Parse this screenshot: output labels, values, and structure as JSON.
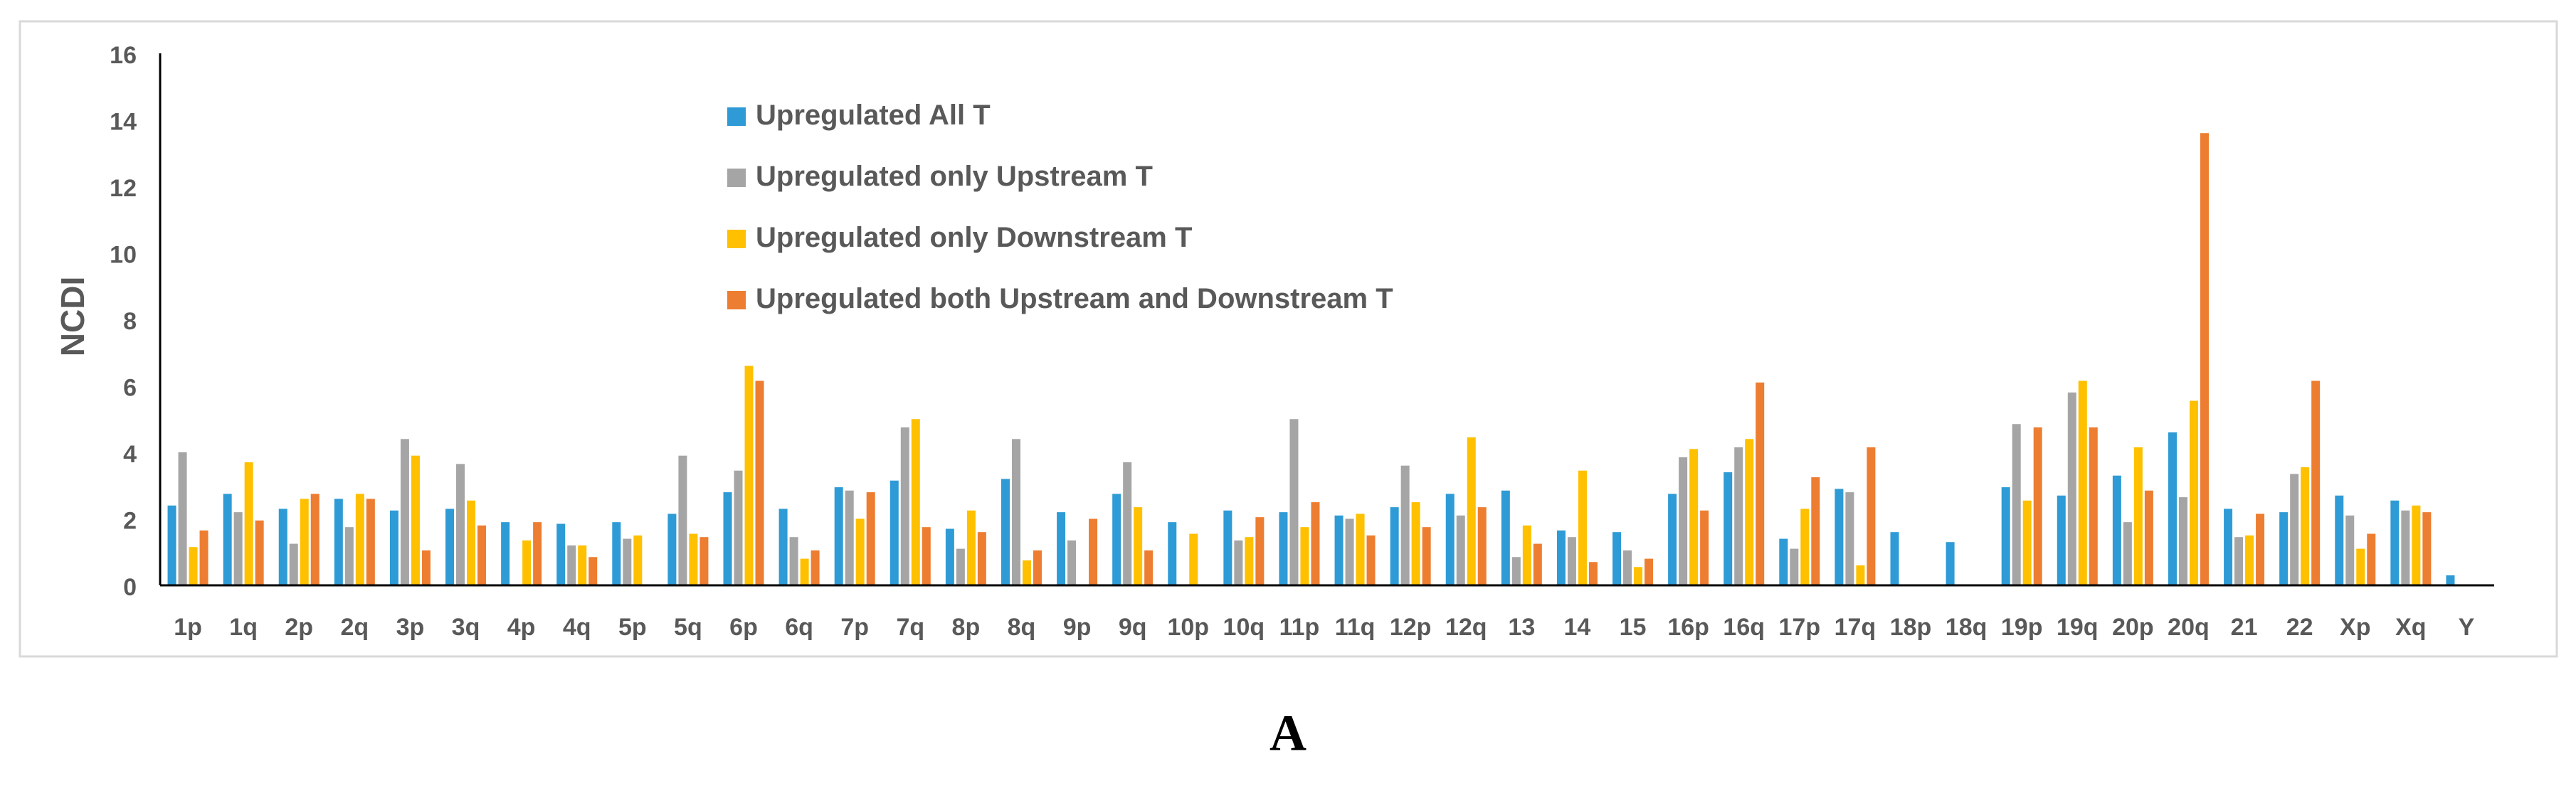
{
  "chart_data": {
    "type": "bar",
    "ylabel": "NCDI",
    "xlabel": "",
    "ylim": [
      0,
      16
    ],
    "yticks": [
      0,
      2,
      4,
      6,
      8,
      10,
      12,
      14,
      16
    ],
    "legend_position": "top-left-center",
    "grid": false,
    "categories": [
      "1p",
      "1q",
      "2p",
      "2q",
      "3p",
      "3q",
      "4p",
      "4q",
      "5p",
      "5q",
      "6p",
      "6q",
      "7p",
      "7q",
      "8p",
      "8q",
      "9p",
      "9q",
      "10p",
      "10q",
      "11p",
      "11q",
      "12p",
      "12q",
      "13",
      "14",
      "15",
      "16p",
      "16q",
      "17p",
      "17q",
      "18p",
      "18q",
      "19p",
      "19q",
      "20p",
      "20q",
      "21",
      "22",
      "Xp",
      "Xq",
      "Y"
    ],
    "series": [
      {
        "name": "Upregulated All T",
        "color": "#2E9BD6",
        "values": [
          2.4,
          2.75,
          2.3,
          2.6,
          2.25,
          2.3,
          1.9,
          1.85,
          1.9,
          2.15,
          2.8,
          2.3,
          2.95,
          3.15,
          1.7,
          3.2,
          2.2,
          2.75,
          1.9,
          2.25,
          2.2,
          2.1,
          2.35,
          2.75,
          2.85,
          1.65,
          1.6,
          2.75,
          3.4,
          1.4,
          2.9,
          1.6,
          1.3,
          2.95,
          2.7,
          3.3,
          4.6,
          2.3,
          2.2,
          2.7,
          2.55,
          0.3
        ]
      },
      {
        "name": "Upregulated only Upstream T",
        "color": "#A5A5A5",
        "values": [
          4.0,
          2.2,
          1.25,
          1.75,
          4.4,
          3.65,
          0,
          1.2,
          1.4,
          3.9,
          3.45,
          1.45,
          2.85,
          4.75,
          1.1,
          4.4,
          1.35,
          3.7,
          0,
          1.35,
          5.0,
          2.0,
          3.6,
          2.1,
          0.85,
          1.45,
          1.05,
          3.85,
          4.15,
          1.1,
          2.8,
          0,
          0,
          4.85,
          5.8,
          1.9,
          2.65,
          1.45,
          3.35,
          2.1,
          2.25,
          0
        ]
      },
      {
        "name": "Upregulated only Downstream T",
        "color": "#FFC000",
        "values": [
          1.15,
          3.7,
          2.6,
          2.75,
          3.9,
          2.55,
          1.35,
          1.2,
          1.5,
          1.55,
          6.6,
          0.8,
          2.0,
          5.0,
          2.25,
          0.75,
          0,
          2.35,
          1.55,
          1.45,
          1.75,
          2.15,
          2.5,
          4.45,
          1.8,
          3.45,
          0.55,
          4.1,
          4.4,
          2.3,
          0.6,
          0,
          0,
          2.55,
          6.15,
          4.15,
          5.55,
          1.5,
          3.55,
          1.1,
          2.4,
          0
        ]
      },
      {
        "name": "Upregulated both Upstream and Downstream T",
        "color": "#ED7D31",
        "values": [
          1.65,
          1.95,
          2.75,
          2.6,
          1.05,
          1.8,
          1.9,
          0.85,
          0,
          1.45,
          6.15,
          1.05,
          2.8,
          1.75,
          1.6,
          1.05,
          2.0,
          1.05,
          0,
          2.05,
          2.5,
          1.5,
          1.75,
          2.35,
          1.25,
          0.7,
          0.8,
          2.25,
          6.1,
          3.25,
          4.15,
          0,
          0,
          4.75,
          4.75,
          2.85,
          13.6,
          2.15,
          6.15,
          1.55,
          2.2,
          0
        ]
      }
    ]
  },
  "figure": {
    "panel_label": "A"
  }
}
